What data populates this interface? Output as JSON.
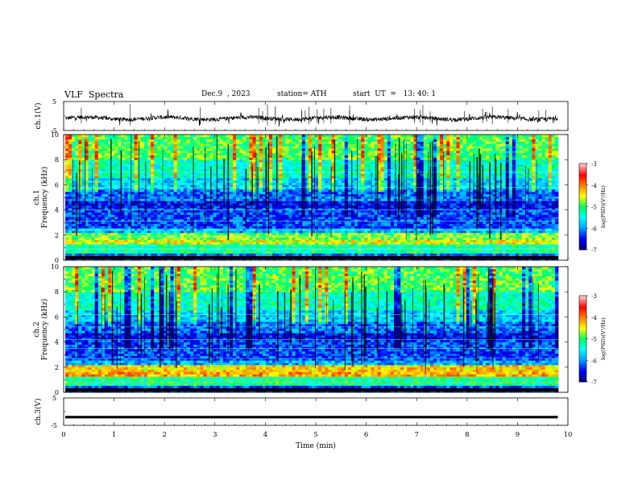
{
  "header": {
    "title": "VLF  Spectra",
    "date": "Dec.9  , 2023",
    "station": "station= ATH",
    "start": "start  UT  =   13: 40: 1"
  },
  "chart_data": [
    {
      "type": "line",
      "name": "ch1-waveform",
      "ylabel": "ch.1(V)",
      "xlim": [
        0,
        10
      ],
      "ylim": [
        -5,
        5
      ],
      "yticks": [
        "5",
        "-5"
      ],
      "baseline_y": -0.8,
      "duration_min": 9.8
    },
    {
      "type": "heatmap",
      "name": "ch1-spectrogram",
      "ylabel_line1": "ch.1",
      "ylabel_line2": "Frequency  (kHz)",
      "xlim": [
        0,
        10
      ],
      "ylim": [
        0,
        10
      ],
      "yticks": [
        "0",
        "2",
        "4",
        "6",
        "8",
        "10"
      ],
      "colorbar": {
        "label": "log(PSD)(V²/Hz)",
        "range": [
          -7,
          -3
        ],
        "ticks": [
          "-3",
          "-4",
          "-5",
          "-6",
          "-7"
        ]
      }
    },
    {
      "type": "heatmap",
      "name": "ch2-spectrogram",
      "ylabel_line1": "ch.2",
      "ylabel_line2": "Frequency  (kHz)",
      "xlim": [
        0,
        10
      ],
      "ylim": [
        0,
        10
      ],
      "yticks": [
        "0",
        "2",
        "4",
        "6",
        "8",
        "10"
      ],
      "colorbar": {
        "label": "log(PSD)(V²/Hz)",
        "range": [
          -7,
          -3
        ],
        "ticks": [
          "-3",
          "-4",
          "-5",
          "-6",
          "-7"
        ]
      }
    },
    {
      "type": "line",
      "name": "ch3-waveform",
      "ylabel": "ch.3(V)",
      "xlabel": "Time  (min)",
      "xlim": [
        0,
        10
      ],
      "ylim": [
        -5,
        5
      ],
      "yticks": [
        "5",
        "-5"
      ],
      "xticks": [
        "0",
        "1",
        "2",
        "3",
        "4",
        "5",
        "6",
        "7",
        "8",
        "9",
        "10"
      ],
      "baseline_y": -2,
      "duration_min": 9.8
    }
  ],
  "colors": {
    "colormap": [
      "#000080",
      "#0000ff",
      "#00a0ff",
      "#00ffff",
      "#00ff60",
      "#ffff00",
      "#ff8000",
      "#ff0000",
      "#ffc8c8"
    ]
  }
}
